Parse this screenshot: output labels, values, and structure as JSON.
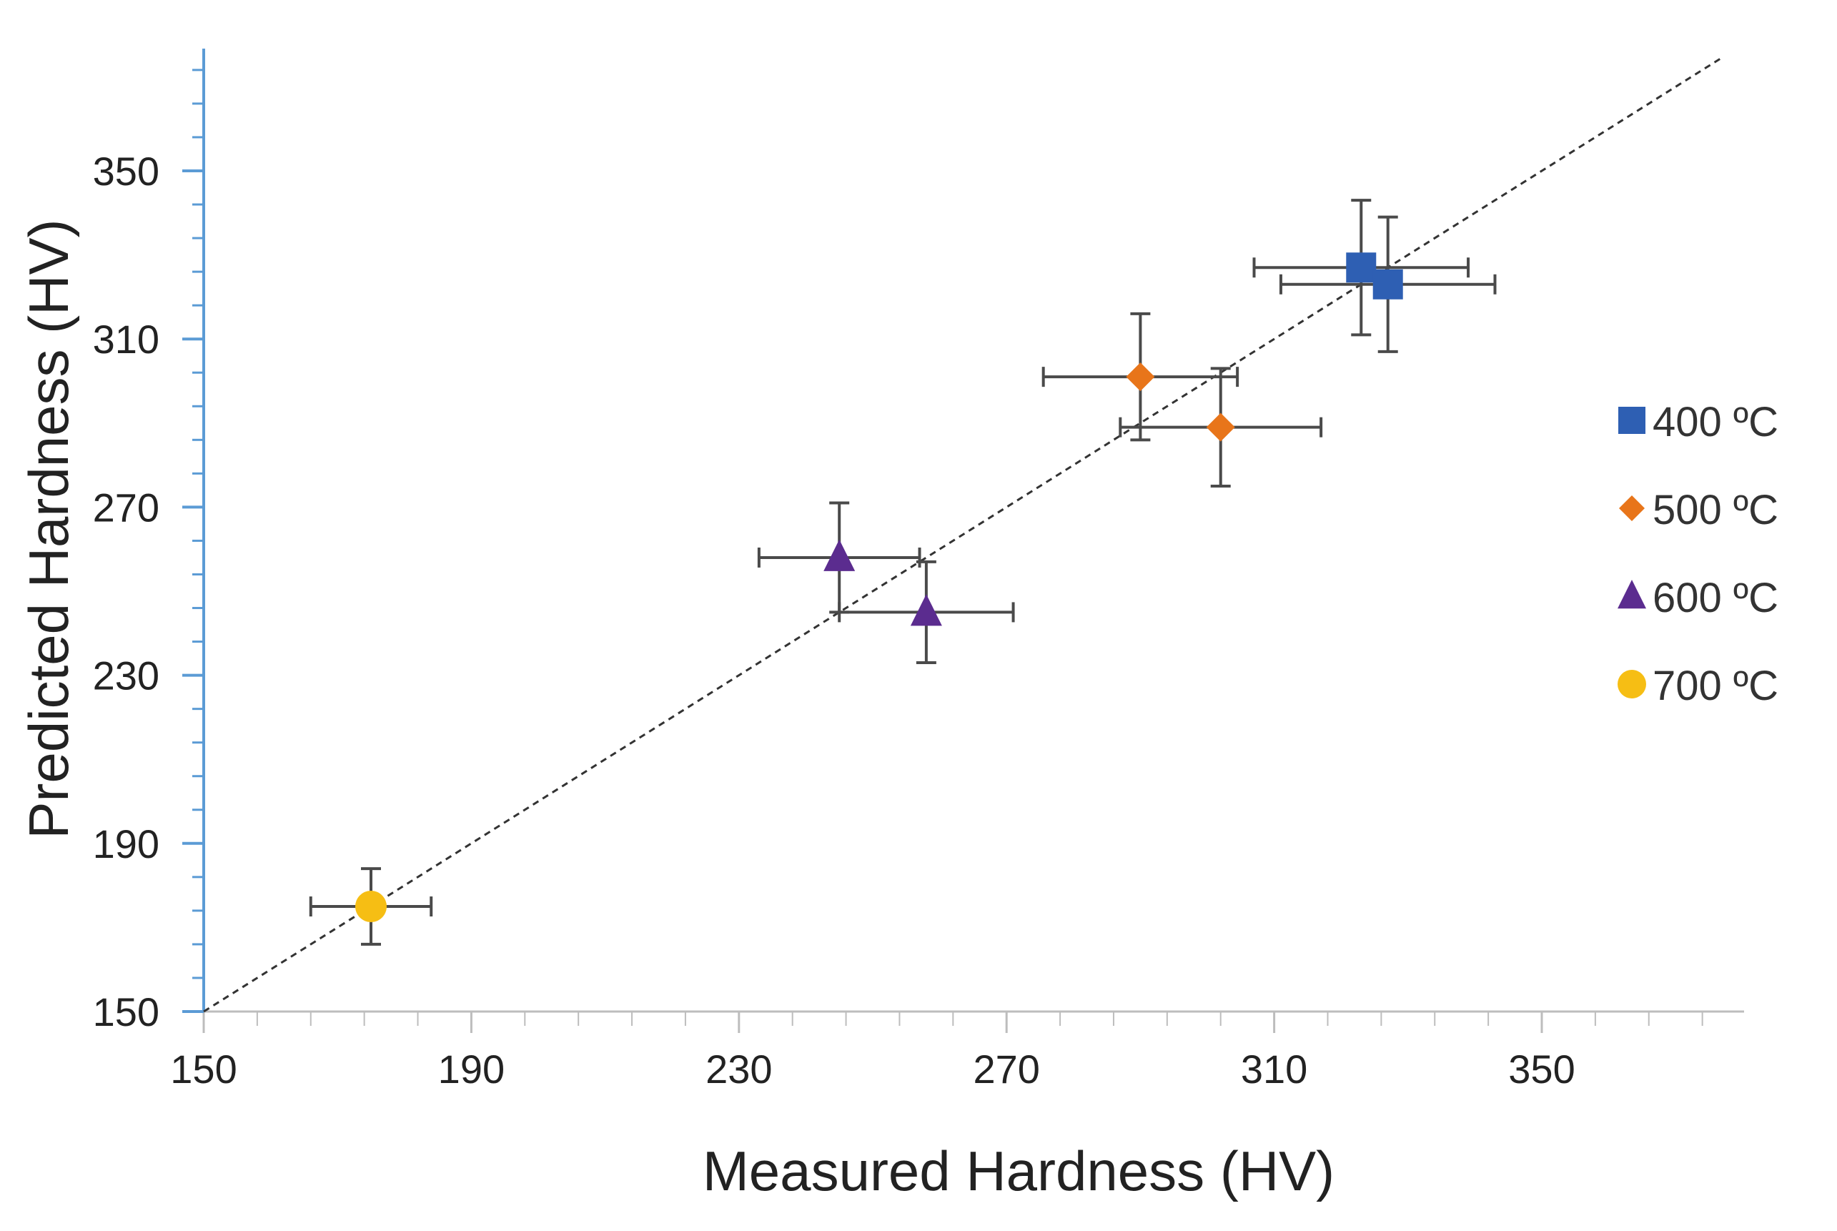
{
  "chart_data": {
    "type": "scatter",
    "title": "",
    "xlabel": "Measured Hardness (HV)",
    "ylabel": "Predicted Hardness (HV)",
    "xlim": [
      150,
      380
    ],
    "ylim": [
      150,
      375
    ],
    "x_ticks": [
      150,
      190,
      230,
      270,
      310,
      350
    ],
    "y_ticks": [
      150,
      190,
      230,
      270,
      310,
      350
    ],
    "x_tick_labels": [
      "150",
      "190",
      "230",
      "270",
      "310",
      "350"
    ],
    "y_tick_labels": [
      "150",
      "190",
      "230",
      "270",
      "310",
      "350"
    ],
    "grid": false,
    "legend_position": "right",
    "reference_line": {
      "name": "y = x",
      "style": "dashed",
      "color": "#333333"
    },
    "series": [
      {
        "name": "400 ºC",
        "marker": "square",
        "color": "#2E5FB3",
        "points": [
          {
            "x": 323,
            "y": 327,
            "xerr": 16,
            "yerr": 16
          },
          {
            "x": 327,
            "y": 323,
            "xerr": 16,
            "yerr": 16
          }
        ]
      },
      {
        "name": "500 ºC",
        "marker": "diamond",
        "color": "#E8751A",
        "points": [
          {
            "x": 290,
            "y": 301,
            "xerr": 14.5,
            "yerr": 15
          },
          {
            "x": 302,
            "y": 289,
            "xerr": 15,
            "yerr": 14
          }
        ]
      },
      {
        "name": "600 ºC",
        "marker": "triangle",
        "color": "#5B2C8F",
        "points": [
          {
            "x": 245,
            "y": 258,
            "xerr": 12,
            "yerr": 13
          },
          {
            "x": 258,
            "y": 245,
            "xerr": 13,
            "yerr": 12
          }
        ]
      },
      {
        "name": "700 ºC",
        "marker": "circle",
        "color": "#F6BE14",
        "points": [
          {
            "x": 175,
            "y": 175,
            "xerr": 9,
            "yerr": 9
          }
        ]
      }
    ]
  }
}
